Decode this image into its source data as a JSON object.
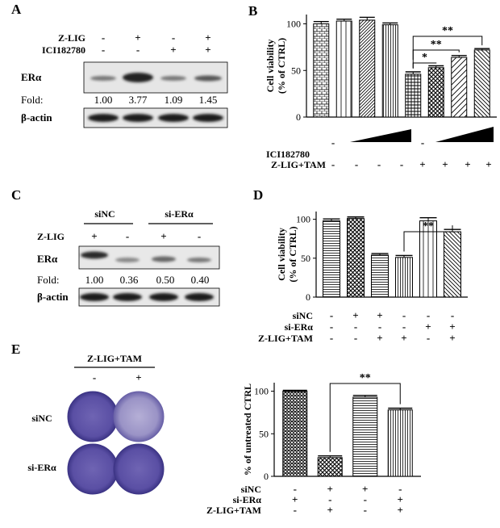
{
  "panels": {
    "A": {
      "letter": "A",
      "rows": [
        {
          "label": "Z-LIG",
          "marks": [
            "-",
            "+",
            "-",
            "+"
          ]
        },
        {
          "label": "ICI182780",
          "marks": [
            "-",
            "-",
            "+",
            "+"
          ]
        }
      ],
      "blot_label": "ERα",
      "fold_label": "Fold:",
      "fold_values": [
        "1.00",
        "3.77",
        "1.09",
        "1.45"
      ],
      "loading_label": "β-actin"
    },
    "B": {
      "letter": "B",
      "ici_label": "ICI182780",
      "ici_marks": [
        "-",
        "-"
      ],
      "ztam_label": "Z-LIG+TAM",
      "ztam_marks": [
        "-",
        "-",
        "-",
        "-",
        "+",
        "+",
        "+",
        "+"
      ],
      "sig": [
        "*",
        "**",
        "**"
      ]
    },
    "C": {
      "letter": "C",
      "groups": [
        "siNC",
        "si-ERα"
      ],
      "rows": [
        {
          "label": "Z-LIG",
          "marks": [
            "+",
            "-",
            "+",
            "-"
          ]
        }
      ],
      "blot_label": "ERα",
      "fold_label": "Fold:",
      "fold_values": [
        "1.00",
        "0.36",
        "0.50",
        "0.40"
      ],
      "loading_label": "β-actin"
    },
    "D": {
      "letter": "D",
      "rows": [
        {
          "label": "siNC",
          "marks": [
            "-",
            "+",
            "+",
            "-",
            "-",
            "-"
          ]
        },
        {
          "label": "si-ERα",
          "marks": [
            "-",
            "-",
            "-",
            "-",
            "+",
            "+"
          ]
        },
        {
          "label": "Z-LIG+TAM",
          "marks": [
            "-",
            "-",
            "+",
            "+",
            "-",
            "+"
          ]
        }
      ],
      "sig": [
        "**"
      ]
    },
    "E": {
      "letter": "E",
      "plate_header": "Z-LIG+TAM",
      "plate_cols": [
        "-",
        "+"
      ],
      "plate_rows": [
        "siNC",
        "si-ERα"
      ],
      "rows": [
        {
          "label": "siNC",
          "marks": [
            "-",
            "+",
            "+",
            "-"
          ]
        },
        {
          "label": "si-ERα",
          "marks": [
            "+",
            "-",
            "-",
            "+"
          ]
        },
        {
          "label": "Z-LIG+TAM",
          "marks": [
            "-",
            "+",
            "-",
            "+"
          ]
        }
      ],
      "sig": [
        "**"
      ]
    }
  },
  "chart_data": [
    {
      "panel": "B",
      "type": "bar",
      "ylabel": "Cell viability\n(% of CTRL)",
      "yticks": [
        "0",
        "50",
        "100"
      ],
      "ylim": [
        0,
        110
      ],
      "values": [
        100,
        103,
        104,
        99,
        46,
        53,
        64,
        72
      ],
      "errors": [
        2.5,
        2,
        3,
        2,
        2.5,
        2,
        2,
        1.5
      ]
    },
    {
      "panel": "D",
      "type": "bar",
      "ylabel": "Cell viability\n(% of CTRL)",
      "yticks": [
        "0",
        "50",
        "100"
      ],
      "ylim": [
        0,
        110
      ],
      "values": [
        98,
        101,
        54,
        51,
        98,
        84
      ],
      "errors": [
        2.5,
        2,
        2,
        2.5,
        4,
        3
      ]
    },
    {
      "panel": "E",
      "type": "bar",
      "ylabel": "% of untreated  CTRL",
      "yticks": [
        "0",
        "50",
        "100"
      ],
      "ylim": [
        0,
        110
      ],
      "values": [
        100,
        22,
        93,
        78
      ],
      "errors": [
        1,
        2,
        2,
        2
      ]
    }
  ]
}
